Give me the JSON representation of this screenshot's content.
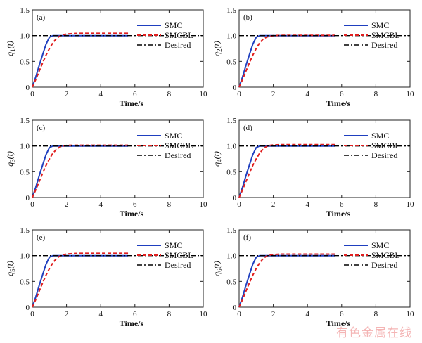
{
  "watermark": "有色金属在线",
  "legend": [
    "SMC",
    "SMCBL",
    "Desired"
  ],
  "colors": {
    "SMC": "#1f3fbf",
    "SMCBL": "#e02020",
    "Desired": "#000000"
  },
  "chart_data": [
    {
      "type": "line",
      "tag": "(a)",
      "xlabel": "Time/s",
      "ylabel": "q",
      "ylabel_sub": "1",
      "ylabel_arg": "(t)",
      "xlim": [
        0,
        10
      ],
      "ylim": [
        0,
        1.5
      ],
      "xticks": [
        "0",
        "2",
        "4",
        "6",
        "8",
        "10"
      ],
      "yticks": [
        "0",
        "0.5",
        "1.0",
        "1.5"
      ],
      "x": [
        0,
        0.2,
        0.4,
        0.6,
        0.8,
        1.0,
        1.2,
        1.4,
        1.6,
        1.8,
        2.0,
        2.4,
        2.8,
        3.2,
        4,
        5,
        5.6
      ],
      "series": [
        {
          "name": "SMC",
          "values": [
            0,
            0.2,
            0.42,
            0.63,
            0.83,
            0.97,
            1.0,
            1.0,
            1.0,
            1.0,
            1.0,
            1.0,
            1.0,
            1.0,
            1.0,
            1.0,
            1.0
          ]
        },
        {
          "name": "SMCBL",
          "values": [
            0,
            0.15,
            0.31,
            0.47,
            0.62,
            0.75,
            0.86,
            0.94,
            0.99,
            1.02,
            1.03,
            1.04,
            1.045,
            1.045,
            1.045,
            1.045,
            1.045
          ]
        },
        {
          "name": "Desired",
          "values": [
            1,
            1
          ],
          "x": [
            0,
            10
          ]
        }
      ]
    },
    {
      "type": "line",
      "tag": "(b)",
      "xlabel": "Time/s",
      "ylabel": "q",
      "ylabel_sub": "2",
      "ylabel_arg": "(t)",
      "xlim": [
        0,
        10
      ],
      "ylim": [
        0,
        1.5
      ],
      "xticks": [
        "0",
        "2",
        "4",
        "6",
        "8",
        "10"
      ],
      "yticks": [
        "0",
        "0.5",
        "1.0",
        "1.5"
      ],
      "x": [
        0,
        0.2,
        0.4,
        0.6,
        0.8,
        1.0,
        1.2,
        1.4,
        1.6,
        1.8,
        2.0,
        2.4,
        2.8,
        3.2,
        4,
        5,
        5.6
      ],
      "series": [
        {
          "name": "SMC",
          "values": [
            0,
            0.2,
            0.42,
            0.63,
            0.83,
            0.97,
            1.0,
            1.0,
            1.0,
            1.0,
            1.0,
            1.0,
            1.0,
            1.0,
            1.0,
            1.0,
            1.0
          ]
        },
        {
          "name": "SMCBL",
          "values": [
            0,
            0.15,
            0.31,
            0.47,
            0.62,
            0.75,
            0.86,
            0.93,
            0.97,
            0.99,
            1.0,
            1.005,
            1.005,
            1.005,
            1.005,
            1.005,
            1.005
          ]
        },
        {
          "name": "Desired",
          "values": [
            1,
            1
          ],
          "x": [
            0,
            10
          ]
        }
      ]
    },
    {
      "type": "line",
      "tag": "(c)",
      "xlabel": "Time/s",
      "ylabel": "q",
      "ylabel_sub": "3",
      "ylabel_arg": "(t)",
      "xlim": [
        0,
        10
      ],
      "ylim": [
        0,
        1.5
      ],
      "xticks": [
        "0",
        "2",
        "4",
        "6",
        "8",
        "10"
      ],
      "yticks": [
        "0",
        "0.5",
        "1.0",
        "1.5"
      ],
      "x": [
        0,
        0.2,
        0.4,
        0.6,
        0.8,
        1.0,
        1.2,
        1.4,
        1.6,
        1.8,
        2.0,
        2.4,
        2.8,
        3.2,
        4,
        5,
        5.6
      ],
      "series": [
        {
          "name": "SMC",
          "values": [
            0,
            0.2,
            0.42,
            0.63,
            0.83,
            0.97,
            1.0,
            1.0,
            1.0,
            1.0,
            1.0,
            1.0,
            1.0,
            1.0,
            1.0,
            1.0,
            1.0
          ]
        },
        {
          "name": "SMCBL",
          "values": [
            0,
            0.15,
            0.31,
            0.47,
            0.62,
            0.75,
            0.86,
            0.93,
            0.98,
            1.0,
            1.01,
            1.015,
            1.015,
            1.015,
            1.015,
            1.015,
            1.015
          ]
        },
        {
          "name": "Desired",
          "values": [
            1,
            1
          ],
          "x": [
            0,
            10
          ]
        }
      ]
    },
    {
      "type": "line",
      "tag": "(d)",
      "xlabel": "Time/s",
      "ylabel": "q",
      "ylabel_sub": "4",
      "ylabel_arg": "(t)",
      "xlim": [
        0,
        10
      ],
      "ylim": [
        0,
        1.5
      ],
      "xticks": [
        "0",
        "2",
        "4",
        "6",
        "8",
        "10"
      ],
      "yticks": [
        "0",
        "0.5",
        "1.0",
        "1.5"
      ],
      "x": [
        0,
        0.2,
        0.4,
        0.6,
        0.8,
        1.0,
        1.2,
        1.4,
        1.6,
        1.8,
        2.0,
        2.4,
        2.8,
        3.2,
        4,
        5,
        5.6
      ],
      "series": [
        {
          "name": "SMC",
          "values": [
            0,
            0.2,
            0.42,
            0.63,
            0.83,
            0.97,
            1.0,
            1.0,
            1.0,
            1.0,
            1.0,
            1.0,
            1.0,
            1.0,
            1.0,
            1.0,
            1.0
          ]
        },
        {
          "name": "SMCBL",
          "values": [
            0,
            0.15,
            0.31,
            0.47,
            0.62,
            0.75,
            0.86,
            0.94,
            0.99,
            1.01,
            1.02,
            1.025,
            1.025,
            1.025,
            1.025,
            1.025,
            1.025
          ]
        },
        {
          "name": "Desired",
          "values": [
            1,
            1
          ],
          "x": [
            0,
            10
          ]
        }
      ]
    },
    {
      "type": "line",
      "tag": "(e)",
      "xlabel": "Time/s",
      "ylabel": "q",
      "ylabel_sub": "5",
      "ylabel_arg": "(t)",
      "xlim": [
        0,
        10
      ],
      "ylim": [
        0,
        1.5
      ],
      "xticks": [
        "0",
        "2",
        "4",
        "6",
        "8",
        "10"
      ],
      "yticks": [
        "0",
        "0.5",
        "1.0",
        "1.5"
      ],
      "x": [
        0,
        0.2,
        0.4,
        0.6,
        0.8,
        1.0,
        1.2,
        1.4,
        1.6,
        1.8,
        2.0,
        2.4,
        2.8,
        3.2,
        4,
        5,
        5.6
      ],
      "series": [
        {
          "name": "SMC",
          "values": [
            0,
            0.2,
            0.42,
            0.63,
            0.83,
            0.97,
            1.0,
            1.0,
            1.0,
            1.0,
            1.0,
            1.0,
            1.0,
            1.0,
            1.0,
            1.0,
            1.0
          ]
        },
        {
          "name": "SMCBL",
          "values": [
            0,
            0.15,
            0.31,
            0.47,
            0.62,
            0.75,
            0.86,
            0.94,
            0.99,
            1.02,
            1.03,
            1.04,
            1.045,
            1.045,
            1.045,
            1.045,
            1.045
          ]
        },
        {
          "name": "Desired",
          "values": [
            1,
            1
          ],
          "x": [
            0,
            10
          ]
        }
      ]
    },
    {
      "type": "line",
      "tag": "(f)",
      "xlabel": "Time/s",
      "ylabel": "q",
      "ylabel_sub": "6",
      "ylabel_arg": "(t)",
      "xlim": [
        0,
        10
      ],
      "ylim": [
        0,
        1.5
      ],
      "xticks": [
        "0",
        "2",
        "4",
        "6",
        "8",
        "10"
      ],
      "yticks": [
        "0",
        "0.5",
        "1.0",
        "1.5"
      ],
      "x": [
        0,
        0.2,
        0.4,
        0.6,
        0.8,
        1.0,
        1.2,
        1.4,
        1.6,
        1.8,
        2.0,
        2.4,
        2.8,
        3.2,
        4,
        5,
        5.6
      ],
      "series": [
        {
          "name": "SMC",
          "values": [
            0,
            0.2,
            0.42,
            0.63,
            0.83,
            0.97,
            1.0,
            1.0,
            1.0,
            1.0,
            1.0,
            1.0,
            1.0,
            1.0,
            1.0,
            1.0,
            1.0
          ]
        },
        {
          "name": "SMCBL",
          "values": [
            0,
            0.15,
            0.31,
            0.47,
            0.62,
            0.75,
            0.86,
            0.94,
            0.99,
            1.01,
            1.02,
            1.03,
            1.03,
            1.03,
            1.03,
            1.03,
            1.03
          ]
        },
        {
          "name": "Desired",
          "values": [
            1,
            1
          ],
          "x": [
            0,
            10
          ]
        }
      ]
    }
  ]
}
